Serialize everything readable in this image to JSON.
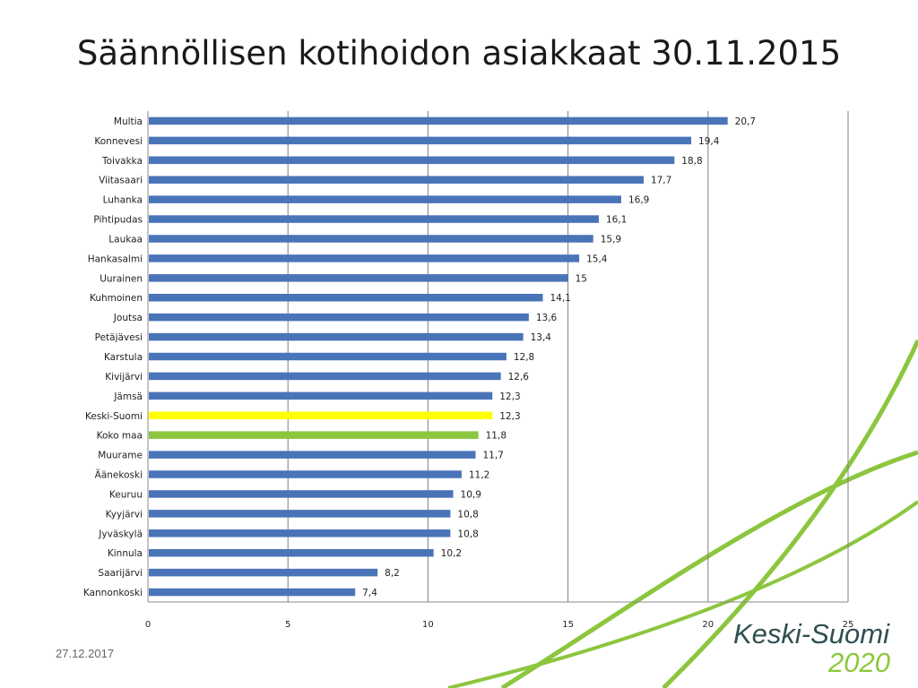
{
  "title": "Säännöllisen kotihoidon asiakkaat 30.11.2015",
  "footer": {
    "date": "27.12.2017"
  },
  "logo": {
    "name": "Keski-Suomi",
    "year": "2020",
    "name_color": "#2f4f4f",
    "year_color": "#8cc83c"
  },
  "colors": {
    "default_bar": "#4a74b8",
    "highlight_region": "#ffff00",
    "highlight_country": "#8cc63f",
    "gridline": "#808080",
    "decor_green": "#8cc63f"
  },
  "chart_data": {
    "type": "bar",
    "orientation": "horizontal",
    "title": "Säännöllisen kotihoidon asiakkaat 30.11.2015",
    "xlabel": "",
    "ylabel": "",
    "xlim": [
      0,
      25
    ],
    "xticks": [
      0,
      5,
      10,
      15,
      20,
      25
    ],
    "grid": true,
    "categories": [
      "Multia",
      "Konnevesi",
      "Toivakka",
      "Viitasaari",
      "Luhanka",
      "Pihtipudas",
      "Laukaa",
      "Hankasalmi",
      "Uurainen",
      "Kuhmoinen",
      "Joutsa",
      "Petäjävesi",
      "Karstula",
      "Kivijärvi",
      "Jämsä",
      "Keski-Suomi",
      "Koko maa",
      "Muurame",
      "Äänekoski",
      "Keuruu",
      "Kyyjärvi",
      "Jyväskylä",
      "Kinnula",
      "Saarijärvi",
      "Kannonkoski"
    ],
    "values": [
      20.7,
      19.4,
      18.8,
      17.7,
      16.9,
      16.1,
      15.9,
      15.4,
      15,
      14.1,
      13.6,
      13.4,
      12.8,
      12.6,
      12.3,
      12.3,
      11.8,
      11.7,
      11.2,
      10.9,
      10.8,
      10.8,
      10.2,
      8.2,
      7.4
    ],
    "value_labels": [
      "20,7",
      "19,4",
      "18,8",
      "17,7",
      "16,9",
      "16,1",
      "15,9",
      "15,4",
      "15",
      "14,1",
      "13,6",
      "13,4",
      "12,8",
      "12,6",
      "12,3",
      "12,3",
      "11,8",
      "11,7",
      "11,2",
      "10,9",
      "10,8",
      "10,8",
      "10,2",
      "8,2",
      "7,4"
    ],
    "bar_colors": [
      "#4a74b8",
      "#4a74b8",
      "#4a74b8",
      "#4a74b8",
      "#4a74b8",
      "#4a74b8",
      "#4a74b8",
      "#4a74b8",
      "#4a74b8",
      "#4a74b8",
      "#4a74b8",
      "#4a74b8",
      "#4a74b8",
      "#4a74b8",
      "#4a74b8",
      "#ffff00",
      "#8cc63f",
      "#4a74b8",
      "#4a74b8",
      "#4a74b8",
      "#4a74b8",
      "#4a74b8",
      "#4a74b8",
      "#4a74b8",
      "#4a74b8"
    ]
  }
}
